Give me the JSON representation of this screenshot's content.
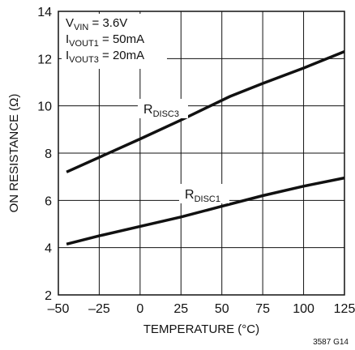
{
  "chart_data": {
    "type": "line",
    "title": "",
    "xlabel": "TEMPERATURE (°C)",
    "ylabel": "ON RESISTANCE (Ω)",
    "xlim": [
      -50,
      125
    ],
    "ylim": [
      2,
      14
    ],
    "xticks": [
      -50,
      -25,
      0,
      25,
      50,
      75,
      100,
      125
    ],
    "yticks": [
      2,
      4,
      6,
      8,
      10,
      12,
      14
    ],
    "xtick_labels": [
      "–50",
      "–25",
      "0",
      "25",
      "50",
      "75",
      "100",
      "125"
    ],
    "ytick_labels": [
      "2",
      "4",
      "6",
      "8",
      "10",
      "12",
      "14"
    ],
    "grid": true,
    "conditions": [
      {
        "main": "V",
        "sub": "VIN",
        "rest": " = 3.6V"
      },
      {
        "main": "I",
        "sub": "VOUT1",
        "rest": " = 50mA"
      },
      {
        "main": "I",
        "sub": "VOUT3",
        "rest": " = 20mA"
      }
    ],
    "series": [
      {
        "main": "R",
        "sub": "DISC3",
        "x": [
          -45,
          0,
          25,
          40,
          55,
          75,
          100,
          125
        ],
        "y": [
          7.2,
          8.6,
          9.4,
          9.9,
          10.4,
          10.95,
          11.6,
          12.3
        ]
      },
      {
        "main": "R",
        "sub": "DISC1",
        "x": [
          -45,
          -25,
          0,
          25,
          50,
          75,
          100,
          125
        ],
        "y": [
          4.15,
          4.5,
          4.9,
          5.3,
          5.75,
          6.2,
          6.6,
          6.95
        ]
      }
    ],
    "figure_id": "3587 G14"
  }
}
